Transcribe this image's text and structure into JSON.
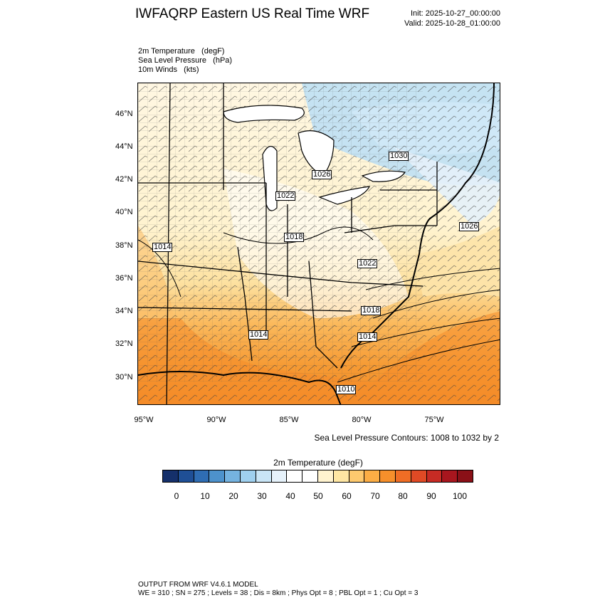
{
  "header": {
    "title": "IWFAQRP Eastern US Real Time WRF",
    "init": "Init: 2025-10-27_00:00:00",
    "valid": "Valid: 2025-10-28_01:00:00"
  },
  "fields": {
    "temp": "2m Temperature   (degF)",
    "slp": "Sea Level Pressure   (hPa)",
    "wind": "10m Winds   (kts)"
  },
  "map": {
    "lat_labels": [
      "46°N",
      "44°N",
      "42°N",
      "40°N",
      "38°N",
      "36°N",
      "34°N",
      "32°N",
      "30°N"
    ],
    "lon_labels": [
      "95°W",
      "90°W",
      "85°W",
      "80°W",
      "75°W"
    ],
    "pressure_labels": [
      "1030",
      "1026",
      "1022",
      "1018",
      "1014",
      "1022",
      "1026",
      "1018",
      "1014",
      "1014",
      "1010"
    ]
  },
  "contour_note": "Sea Level Pressure Contours: 1008 to 1032 by 2",
  "colorbar": {
    "title": "2m Temperature   (degF)",
    "labels": [
      "0",
      "10",
      "20",
      "30",
      "40",
      "50",
      "60",
      "70",
      "80",
      "90",
      "100"
    ],
    "colors": [
      "#15306b",
      "#1f4f96",
      "#2f6db3",
      "#4d92cc",
      "#75b3e0",
      "#9fd0ef",
      "#c9e5f6",
      "#e6f2fb",
      "#ffffff",
      "#ffffff",
      "#fff3cf",
      "#fee6a3",
      "#fdc96e",
      "#fbad45",
      "#f68f2b",
      "#ef6d25",
      "#e04a25",
      "#c72b24",
      "#a8161e",
      "#8a1017"
    ]
  },
  "footer": {
    "line1": "OUTPUT FROM WRF V4.6.1 MODEL",
    "line2": "WE = 310 ; SN = 275 ; Levels = 38 ; Dis = 8km ; Phys Opt = 8 ; PBL Opt = 1 ; Cu Opt = 3"
  }
}
